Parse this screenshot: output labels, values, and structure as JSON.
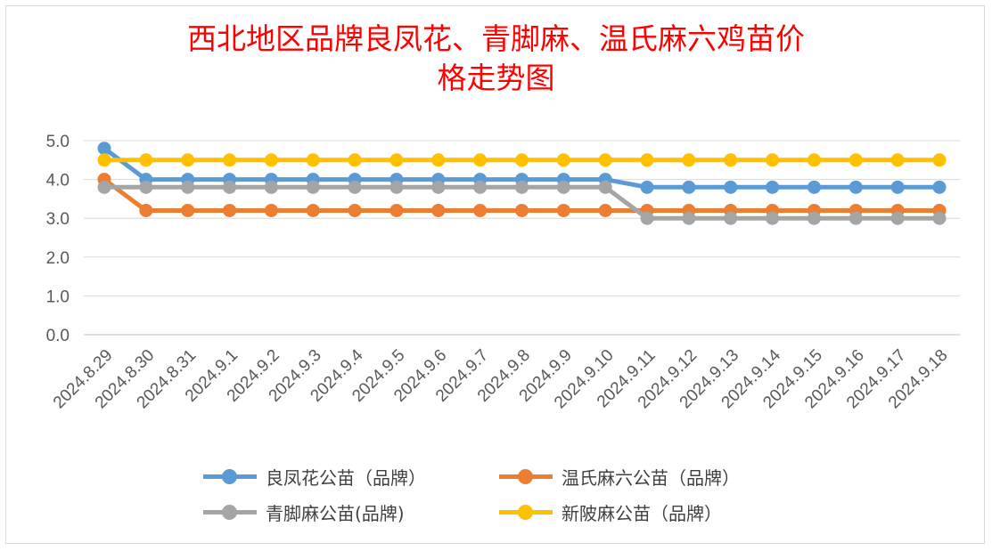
{
  "chart_data": {
    "type": "line",
    "title": "西北地区品牌良凤花、青脚麻、温氏麻六鸡苗价格走势图",
    "title_lines": [
      "西北地区品牌良凤花、青脚麻、温氏麻六鸡苗价",
      "格走势图"
    ],
    "xlabel": "",
    "ylabel": "",
    "ylim": [
      0,
      5
    ],
    "y_ticks": [
      "0.0",
      "1.0",
      "2.0",
      "3.0",
      "4.0",
      "5.0"
    ],
    "grid": true,
    "legend_position": "bottom",
    "categories": [
      "2024.8.29",
      "2024.8.30",
      "2024.8.31",
      "2024.9.1",
      "2024.9.2",
      "2024.9.3",
      "2024.9.4",
      "2024.9.5",
      "2024.9.6",
      "2024.9.7",
      "2024.9.8",
      "2024.9.9",
      "2024.9.10",
      "2024.9.11",
      "2024.9.12",
      "2024.9.13",
      "2024.9.14",
      "2024.9.15",
      "2024.9.16",
      "2024.9.17",
      "2024.9.18"
    ],
    "series": [
      {
        "name": "良凤花公苗（品牌）",
        "color": "#5b9bd5",
        "values": [
          4.8,
          4.0,
          4.0,
          4.0,
          4.0,
          4.0,
          4.0,
          4.0,
          4.0,
          4.0,
          4.0,
          4.0,
          4.0,
          3.8,
          3.8,
          3.8,
          3.8,
          3.8,
          3.8,
          3.8,
          3.8
        ]
      },
      {
        "name": "温氏麻六公苗（品牌）",
        "color": "#ed7d31",
        "values": [
          4.0,
          3.2,
          3.2,
          3.2,
          3.2,
          3.2,
          3.2,
          3.2,
          3.2,
          3.2,
          3.2,
          3.2,
          3.2,
          3.2,
          3.2,
          3.2,
          3.2,
          3.2,
          3.2,
          3.2,
          3.2
        ]
      },
      {
        "name": "青脚麻公苗(品牌)",
        "color": "#a5a5a5",
        "values": [
          3.8,
          3.8,
          3.8,
          3.8,
          3.8,
          3.8,
          3.8,
          3.8,
          3.8,
          3.8,
          3.8,
          3.8,
          3.8,
          3.0,
          3.0,
          3.0,
          3.0,
          3.0,
          3.0,
          3.0,
          3.0
        ]
      },
      {
        "name": "新陂麻公苗（品牌）",
        "color": "#ffc000",
        "values": [
          4.5,
          4.5,
          4.5,
          4.5,
          4.5,
          4.5,
          4.5,
          4.5,
          4.5,
          4.5,
          4.5,
          4.5,
          4.5,
          4.5,
          4.5,
          4.5,
          4.5,
          4.5,
          4.5,
          4.5,
          4.5
        ]
      }
    ]
  }
}
